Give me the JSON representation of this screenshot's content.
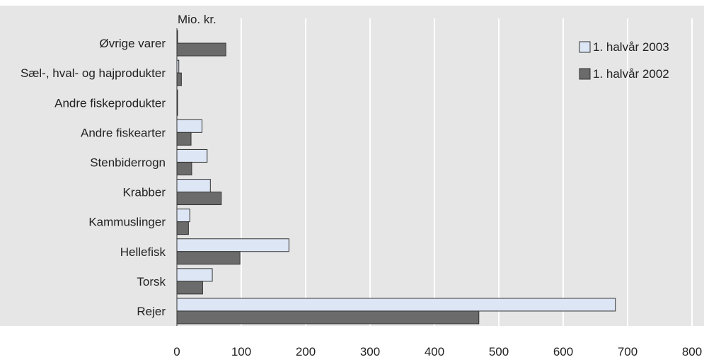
{
  "chart_data": {
    "type": "bar",
    "orientation": "horizontal",
    "unit_label": "Mio. kr.",
    "categories": [
      "Øvrige varer",
      "Sæl-, hval- og hajprodukter",
      "Andre fiskeprodukter",
      "Andre fiskearter",
      "Stenbiderrogn",
      "Krabber",
      "Kammuslinger",
      "Hellefisk",
      "Torsk",
      "Rejer"
    ],
    "series": [
      {
        "name": "1. halvår 2003",
        "values": [
          0,
          3,
          1,
          39,
          47,
          52,
          20,
          174,
          55,
          681
        ],
        "color": "#dce6f5"
      },
      {
        "name": "1. halvår 2002",
        "values": [
          76,
          7,
          1,
          22,
          23,
          69,
          18,
          98,
          40,
          469
        ],
        "color": "#6b6b6b"
      }
    ],
    "xlim": [
      0,
      800
    ],
    "x_ticks": [
      0,
      100,
      200,
      300,
      400,
      500,
      600,
      700,
      800
    ],
    "grid": true,
    "legend_position": "top-right",
    "colors": {
      "background": "#e6e6e6",
      "gridline": "#ffffff",
      "bar_outline": "#333333"
    }
  }
}
